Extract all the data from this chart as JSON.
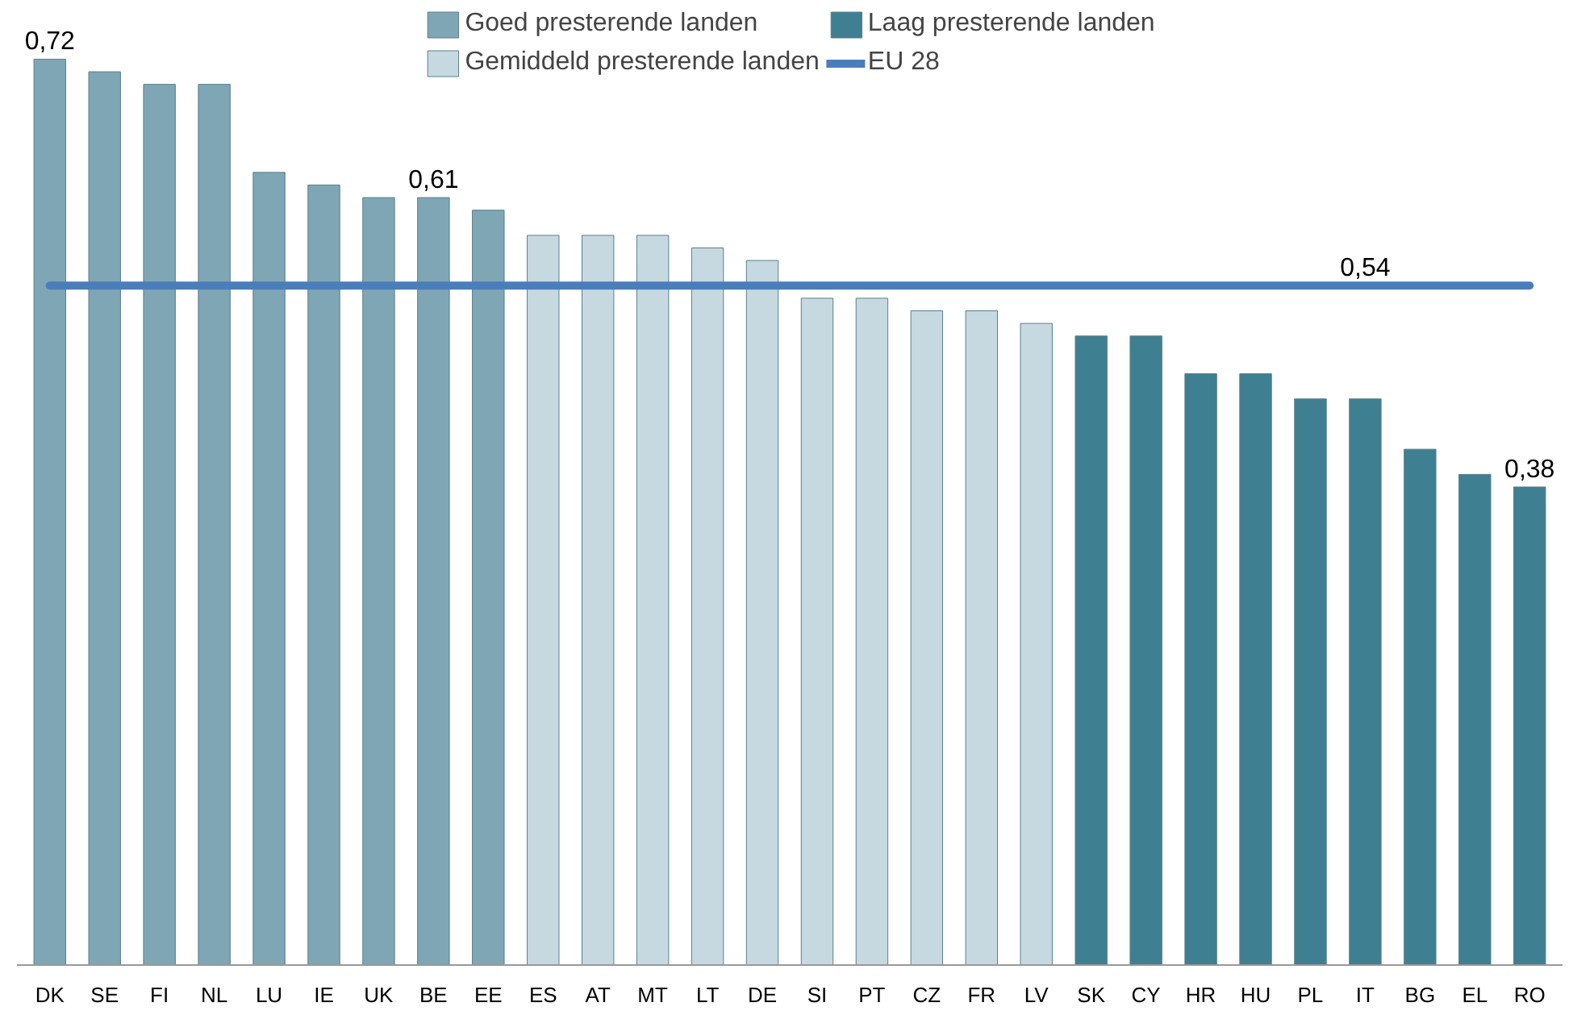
{
  "chart_data": {
    "type": "bar",
    "categories": [
      "DK",
      "SE",
      "FI",
      "NL",
      "LU",
      "IE",
      "UK",
      "BE",
      "EE",
      "ES",
      "AT",
      "MT",
      "LT",
      "DE",
      "SI",
      "PT",
      "CZ",
      "FR",
      "LV",
      "SK",
      "CY",
      "HR",
      "HU",
      "PL",
      "IT",
      "BG",
      "EL",
      "RO"
    ],
    "series": [
      {
        "name": "Goed presterende landen",
        "color": "#7fa6b4",
        "values": [
          0.72,
          0.71,
          0.7,
          0.7,
          0.63,
          0.62,
          0.61,
          0.61,
          0.6,
          null,
          null,
          null,
          null,
          null,
          null,
          null,
          null,
          null,
          null,
          null,
          null,
          null,
          null,
          null,
          null,
          null,
          null,
          null
        ],
        "value_labels": [
          "0,72",
          null,
          null,
          null,
          null,
          null,
          null,
          "0,61",
          null,
          null,
          null,
          null,
          null,
          null,
          null,
          null,
          null,
          null,
          null,
          null,
          null,
          null,
          null,
          null,
          null,
          null,
          null,
          null
        ]
      },
      {
        "name": "Gemiddeld presterende landen",
        "color": "#c6d9e0",
        "values": [
          null,
          null,
          null,
          null,
          null,
          null,
          null,
          null,
          null,
          0.58,
          0.58,
          0.58,
          0.57,
          0.56,
          0.53,
          0.53,
          0.52,
          0.52,
          0.51,
          null,
          null,
          null,
          null,
          null,
          null,
          null,
          null,
          null
        ],
        "value_labels": [
          null,
          null,
          null,
          null,
          null,
          null,
          null,
          null,
          null,
          null,
          null,
          null,
          null,
          null,
          null,
          null,
          null,
          null,
          null,
          null,
          null,
          null,
          null,
          null,
          null,
          null,
          null,
          null
        ]
      },
      {
        "name": "Laag presterende landen",
        "color": "#3f7f92",
        "values": [
          null,
          null,
          null,
          null,
          null,
          null,
          null,
          null,
          null,
          null,
          null,
          null,
          null,
          null,
          null,
          null,
          null,
          null,
          null,
          0.5,
          0.5,
          0.47,
          0.47,
          0.45,
          0.45,
          0.41,
          0.39,
          0.38
        ],
        "value_labels": [
          null,
          null,
          null,
          null,
          null,
          null,
          null,
          null,
          null,
          null,
          null,
          null,
          null,
          null,
          null,
          null,
          null,
          null,
          null,
          null,
          null,
          null,
          null,
          null,
          null,
          null,
          null,
          "0,38"
        ]
      },
      {
        "name": "EU 28",
        "type": "line",
        "color": "#4a7ebb",
        "values": [
          0.54,
          0.54,
          0.54,
          0.54,
          0.54,
          0.54,
          0.54,
          0.54,
          0.54,
          0.54,
          0.54,
          0.54,
          0.54,
          0.54,
          0.54,
          0.54,
          0.54,
          0.54,
          0.54,
          0.54,
          0.54,
          0.54,
          0.54,
          0.54,
          0.54,
          0.54,
          0.54,
          0.54
        ],
        "value_labels": [
          null,
          null,
          null,
          null,
          null,
          null,
          null,
          null,
          null,
          null,
          null,
          null,
          null,
          null,
          null,
          null,
          null,
          null,
          null,
          null,
          null,
          null,
          null,
          null,
          "0,54",
          null,
          null,
          null
        ]
      }
    ],
    "ylim": [
      0,
      0.76
    ],
    "tick_labels": "x",
    "grid": false,
    "legend": "top"
  }
}
